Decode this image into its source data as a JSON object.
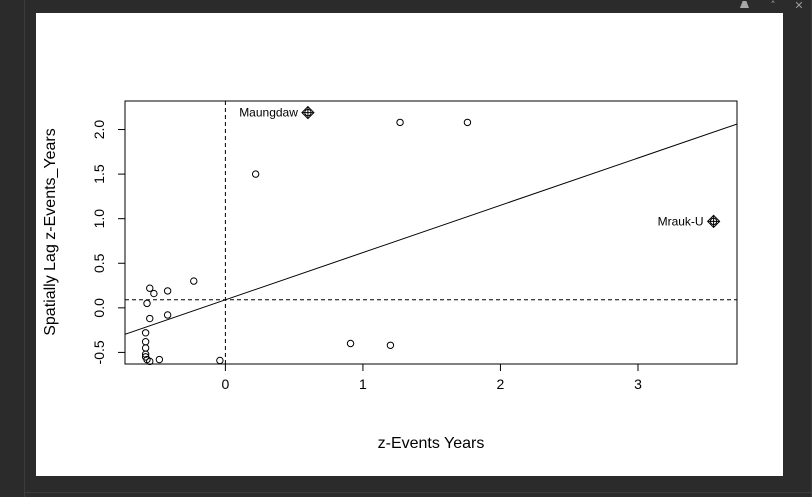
{
  "window": {
    "toolbar_icons": [
      "broom-icon",
      "collapse-icon",
      "close-icon"
    ],
    "close_glyph": "✕",
    "collapse_glyph": "˄"
  },
  "chart_data": {
    "type": "scatter",
    "title": "",
    "xlabel": "z-Events Years",
    "ylabel": "Spatially Lag z-Events_Years",
    "xlim": [
      -0.73,
      3.72
    ],
    "ylim": [
      -0.63,
      2.32
    ],
    "xticks": [
      0,
      1,
      2,
      3
    ],
    "yticks": [
      -0.5,
      0.0,
      0.5,
      1.0,
      1.5,
      2.0
    ],
    "xtick_labels": [
      "0",
      "1",
      "2",
      "3"
    ],
    "ytick_labels": [
      "-0.5",
      "0.0",
      "0.5",
      "1.0",
      "1.5",
      "2.0"
    ],
    "points": [
      {
        "x": -0.58,
        "y": -0.55
      },
      {
        "x": -0.57,
        "y": -0.58
      },
      {
        "x": -0.58,
        "y": -0.52
      },
      {
        "x": -0.58,
        "y": -0.45
      },
      {
        "x": -0.58,
        "y": -0.38
      },
      {
        "x": -0.58,
        "y": -0.28
      },
      {
        "x": -0.55,
        "y": -0.6
      },
      {
        "x": -0.48,
        "y": -0.58
      },
      {
        "x": -0.55,
        "y": -0.12
      },
      {
        "x": -0.57,
        "y": 0.05
      },
      {
        "x": -0.52,
        "y": 0.16
      },
      {
        "x": -0.55,
        "y": 0.22
      },
      {
        "x": -0.42,
        "y": 0.19
      },
      {
        "x": -0.42,
        "y": -0.08
      },
      {
        "x": -0.23,
        "y": 0.3
      },
      {
        "x": -0.04,
        "y": -0.59
      },
      {
        "x": 0.22,
        "y": 1.5
      },
      {
        "x": 0.91,
        "y": -0.4
      },
      {
        "x": 1.2,
        "y": -0.42
      },
      {
        "x": 1.27,
        "y": 2.08
      },
      {
        "x": 1.76,
        "y": 2.08
      }
    ],
    "influential_points": [
      {
        "label": "Maungdaw",
        "x": 0.6,
        "y": 2.19
      },
      {
        "label": "Mrauk-U",
        "x": 3.55,
        "y": 0.97
      }
    ],
    "regression_line": {
      "intercept": 0.09,
      "slope": 0.53
    },
    "ref_lines": {
      "vertical_x": 0,
      "horizontal_y": 0.09
    },
    "grid": false,
    "legend": "none"
  }
}
